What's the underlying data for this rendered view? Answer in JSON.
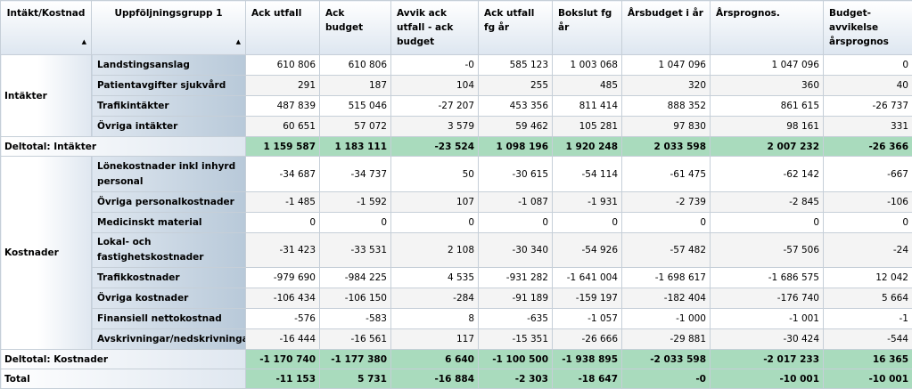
{
  "headers": {
    "c1": "Intäkt/Kostnad",
    "c2": "Uppföljningsgrupp 1",
    "c3": "Ack utfall",
    "c4": "Ack budget",
    "c5": "Avvik ack utfall - ack budget",
    "c6": "Ack utfall fg år",
    "c7": "Bokslut fg år",
    "c8": "Årsbudget i år",
    "c9": "Årsprognos.",
    "c10": "Budget-avvikelse årsprognos",
    "sort_glyph": "▲"
  },
  "groups": {
    "intakter": "Intäkter",
    "kostnader": "Kostnader"
  },
  "rows": [
    {
      "label": "Landstingsanslag",
      "v": [
        "610 806",
        "610 806",
        "-0",
        "585 123",
        "1 003 068",
        "1 047 096",
        "1 047 096",
        "0"
      ]
    },
    {
      "label": "Patientavgifter sjukvård",
      "v": [
        "291",
        "187",
        "104",
        "255",
        "485",
        "320",
        "360",
        "40"
      ]
    },
    {
      "label": "Trafikintäkter",
      "v": [
        "487 839",
        "515 046",
        "-27 207",
        "453 356",
        "811 414",
        "888 352",
        "861 615",
        "-26 737"
      ]
    },
    {
      "label": "Övriga intäkter",
      "v": [
        "60 651",
        "57 072",
        "3 579",
        "59 462",
        "105 281",
        "97 830",
        "98 161",
        "331"
      ]
    },
    {
      "label": "Lönekostnader inkl inhyrd personal",
      "v": [
        "-34 687",
        "-34 737",
        "50",
        "-30 615",
        "-54 114",
        "-61 475",
        "-62 142",
        "-667"
      ]
    },
    {
      "label": "Övriga personalkostnader",
      "v": [
        "-1 485",
        "-1 592",
        "107",
        "-1 087",
        "-1 931",
        "-2 739",
        "-2 845",
        "-106"
      ]
    },
    {
      "label": "Medicinskt material",
      "v": [
        "0",
        "0",
        "0",
        "0",
        "0",
        "0",
        "0",
        "0"
      ]
    },
    {
      "label": "Lokal- och fastighetskostnader",
      "v": [
        "-31 423",
        "-33 531",
        "2 108",
        "-30 340",
        "-54 926",
        "-57 482",
        "-57 506",
        "-24"
      ]
    },
    {
      "label": "Trafikkostnader",
      "v": [
        "-979 690",
        "-984 225",
        "4 535",
        "-931 282",
        "-1 641 004",
        "-1 698 617",
        "-1 686 575",
        "12 042"
      ]
    },
    {
      "label": "Övriga kostnader",
      "v": [
        "-106 434",
        "-106 150",
        "-284",
        "-91 189",
        "-159 197",
        "-182 404",
        "-176 740",
        "5 664"
      ]
    },
    {
      "label": "Finansiell nettokostnad",
      "v": [
        "-576",
        "-583",
        "8",
        "-635",
        "-1 057",
        "-1 000",
        "-1 001",
        "-1"
      ]
    },
    {
      "label": "Avskrivningar/nedskrivningar",
      "v": [
        "-16 444",
        "-16 561",
        "117",
        "-15 351",
        "-26 666",
        "-29 881",
        "-30 424",
        "-544"
      ]
    }
  ],
  "subtotal_intakter": {
    "label": "Deltotal: Intäkter",
    "v": [
      "1 159 587",
      "1 183 111",
      "-23 524",
      "1 098 196",
      "1 920 248",
      "2 033 598",
      "2 007 232",
      "-26 366"
    ]
  },
  "subtotal_kostnader": {
    "label": "Deltotal: Kostnader",
    "v": [
      "-1 170 740",
      "-1 177 380",
      "6 640",
      "-1 100 500",
      "-1 938 895",
      "-2 033 598",
      "-2 017 233",
      "16 365"
    ]
  },
  "total": {
    "label": "Total",
    "v": [
      "-11 153",
      "5 731",
      "-16 884",
      "-2 303",
      "-18 647",
      "-0",
      "-10 001",
      "-10 001"
    ]
  }
}
